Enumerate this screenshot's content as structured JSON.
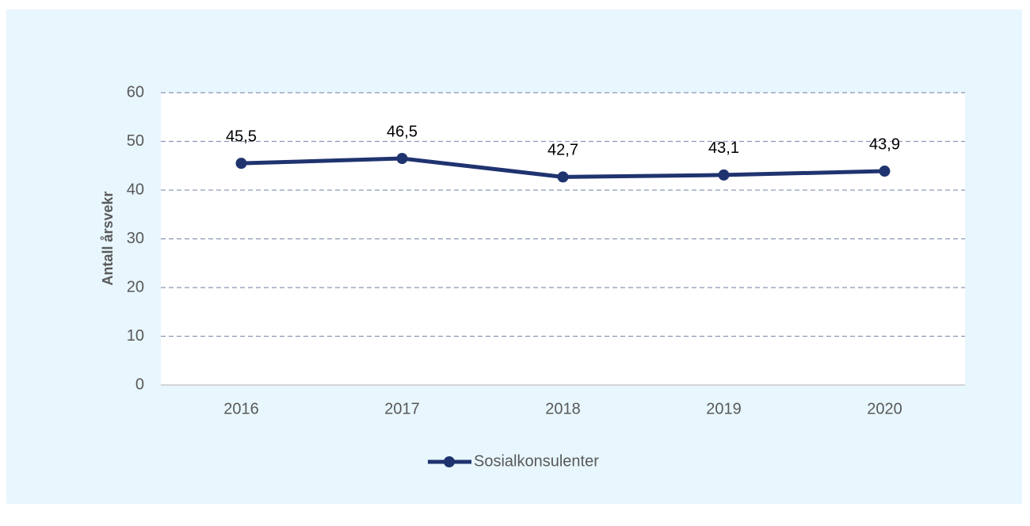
{
  "chart_data": {
    "type": "line",
    "ylabel": "Antall årsvekr",
    "categories": [
      "2016",
      "2017",
      "2018",
      "2019",
      "2020"
    ],
    "series": [
      {
        "name": "Sosialkonsulenter",
        "color": "#1f336f",
        "values": [
          45.5,
          46.5,
          42.7,
          43.1,
          43.9
        ],
        "value_labels": [
          "45,5",
          "46,5",
          "42,7",
          "43,1",
          "43,9"
        ]
      }
    ],
    "ylim": [
      0,
      60
    ],
    "yticks": [
      0,
      10,
      20,
      30,
      40,
      50,
      60
    ],
    "grid": true,
    "legend": "bottom"
  }
}
